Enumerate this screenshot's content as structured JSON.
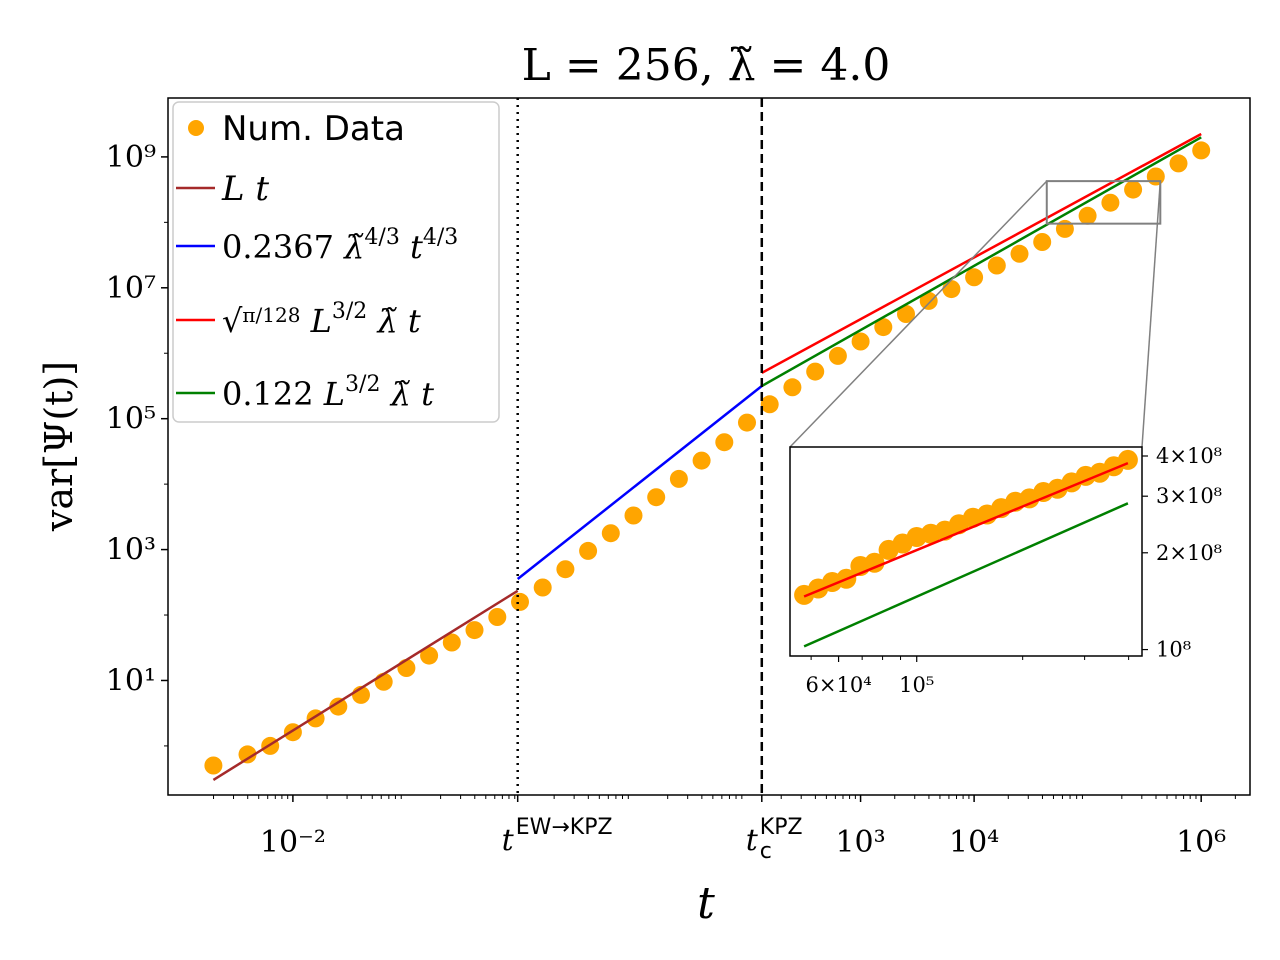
{
  "chart_data": {
    "type": "scatter",
    "title": "L = 256, λ̃ = 4.0",
    "xlabel": "t",
    "ylabel": "var[Ψ(t)]",
    "xscale": "log",
    "yscale": "log",
    "xlim_log10": [
      -3.1,
      6.43
    ],
    "ylim_log10": [
      -0.75,
      9.9
    ],
    "grid": false,
    "legend_position": "top-left",
    "x_ticks": [
      {
        "log10": -2,
        "label": "10^-2"
      },
      {
        "log10": 3,
        "label": "10^3"
      },
      {
        "log10": 4,
        "label": "10^4"
      },
      {
        "log10": 6,
        "label": "10^6"
      }
    ],
    "y_ticks": [
      {
        "log10": 1,
        "label": "10^1"
      },
      {
        "log10": 3,
        "label": "10^3"
      },
      {
        "log10": 5,
        "label": "10^5"
      },
      {
        "log10": 7,
        "label": "10^7"
      },
      {
        "log10": 9,
        "label": "10^9"
      }
    ],
    "vlines": [
      {
        "name": "t-ew-kpz",
        "log10x": -0.02,
        "style": "dotted",
        "label_base": "t",
        "label_sup": "EW→KPZ"
      },
      {
        "name": "t-c-kpz",
        "log10x": 2.13,
        "style": "dashed",
        "label_base": "t",
        "label_sup": "KPZ",
        "label_sub": "c"
      }
    ],
    "legend": [
      {
        "label": "Num. Data",
        "kind": "marker",
        "color": "#ffa500"
      },
      {
        "label": "L t",
        "kind": "line",
        "color": "#a52a2a"
      },
      {
        "label": "0.2367 λ̃^(4/3) t^(4/3)",
        "kind": "line",
        "color": "#0000ff"
      },
      {
        "label": "√(π/128) L^(3/2) λ̃ t",
        "kind": "line",
        "color": "#ff0000"
      },
      {
        "label": "0.122 L^(3/2) λ̃ t",
        "kind": "line",
        "color": "#008000"
      }
    ],
    "series": [
      {
        "name": "Num. Data",
        "type": "scatter",
        "color": "#ffa500",
        "x_log10": [
          -2.7,
          -2.4,
          -2.2,
          -2.0,
          -1.8,
          -1.6,
          -1.4,
          -1.2,
          -1.0,
          -0.8,
          -0.6,
          -0.4,
          -0.2,
          0.0,
          0.2,
          0.4,
          0.6,
          0.8,
          1.0,
          1.2,
          1.4,
          1.6,
          1.8,
          2.0,
          2.2,
          2.4,
          2.6,
          2.8,
          3.0,
          3.2,
          3.4,
          3.6,
          3.8,
          4.0,
          4.2,
          4.4,
          4.6,
          4.8,
          5.0,
          5.2,
          5.4,
          5.6,
          5.8,
          6.0
        ],
        "y_log10": [
          -0.3,
          -0.13,
          0.0,
          0.21,
          0.42,
          0.6,
          0.78,
          0.98,
          1.19,
          1.38,
          1.58,
          1.77,
          1.97,
          2.2,
          2.42,
          2.7,
          2.98,
          3.25,
          3.52,
          3.8,
          4.08,
          4.36,
          4.64,
          4.94,
          5.22,
          5.48,
          5.72,
          5.96,
          6.18,
          6.4,
          6.6,
          6.8,
          6.98,
          7.16,
          7.34,
          7.52,
          7.7,
          7.9,
          8.1,
          8.3,
          8.5,
          8.7,
          8.9,
          9.1
        ]
      },
      {
        "name": "L t",
        "type": "line",
        "color": "#a52a2a",
        "x_log10": [
          -2.7,
          -0.02
        ],
        "y_log10": [
          -0.52,
          2.37
        ]
      },
      {
        "name": "0.2367 λ̃^(4/3) t^(4/3)",
        "type": "line",
        "color": "#0000ff",
        "x_log10": [
          -0.02,
          2.13
        ],
        "y_log10": [
          2.55,
          5.5
        ]
      },
      {
        "name": "√(π/128) L^(3/2) λ̃ t",
        "type": "line",
        "color": "#ff0000",
        "x_log10": [
          2.13,
          6.0
        ],
        "y_log10": [
          5.7,
          9.35
        ]
      },
      {
        "name": "0.122 L^(3/2) λ̃ t",
        "type": "line",
        "color": "#008000",
        "x_log10": [
          2.13,
          6.0
        ],
        "y_log10": [
          5.5,
          9.3
        ]
      }
    ],
    "inset": {
      "xlim_log10": [
        4.64,
        5.64
      ],
      "ylim_log10": [
        7.98,
        8.63
      ],
      "x_ticks": [
        {
          "log10": 4.778,
          "label": "6×10^4"
        },
        {
          "log10": 5.0,
          "label": "10^5"
        }
      ],
      "y_ticks": [
        {
          "log10": 8.0,
          "label": "10^8"
        },
        {
          "log10": 8.301,
          "label": "2×10^8"
        },
        {
          "log10": 8.477,
          "label": "3×10^8"
        },
        {
          "log10": 8.602,
          "label": "4×10^8"
        }
      ],
      "red_line": {
        "x_log10": [
          4.68,
          5.6
        ],
        "y_log10": [
          8.165,
          8.58
        ]
      },
      "green_line": {
        "x_log10": [
          4.68,
          5.6
        ],
        "y_log10": [
          8.01,
          8.455
        ]
      },
      "data": {
        "x_log10": [
          4.68,
          4.72,
          4.76,
          4.8,
          4.84,
          4.88,
          4.92,
          4.96,
          5.0,
          5.04,
          5.08,
          5.12,
          5.16,
          5.2,
          5.24,
          5.28,
          5.32,
          5.36,
          5.4,
          5.44,
          5.48,
          5.52,
          5.56,
          5.6
        ],
        "y_log10": [
          8.17,
          8.19,
          8.21,
          8.22,
          8.26,
          8.27,
          8.31,
          8.33,
          8.35,
          8.36,
          8.37,
          8.39,
          8.41,
          8.42,
          8.44,
          8.46,
          8.47,
          8.49,
          8.5,
          8.52,
          8.54,
          8.55,
          8.57,
          8.59
        ]
      }
    }
  }
}
